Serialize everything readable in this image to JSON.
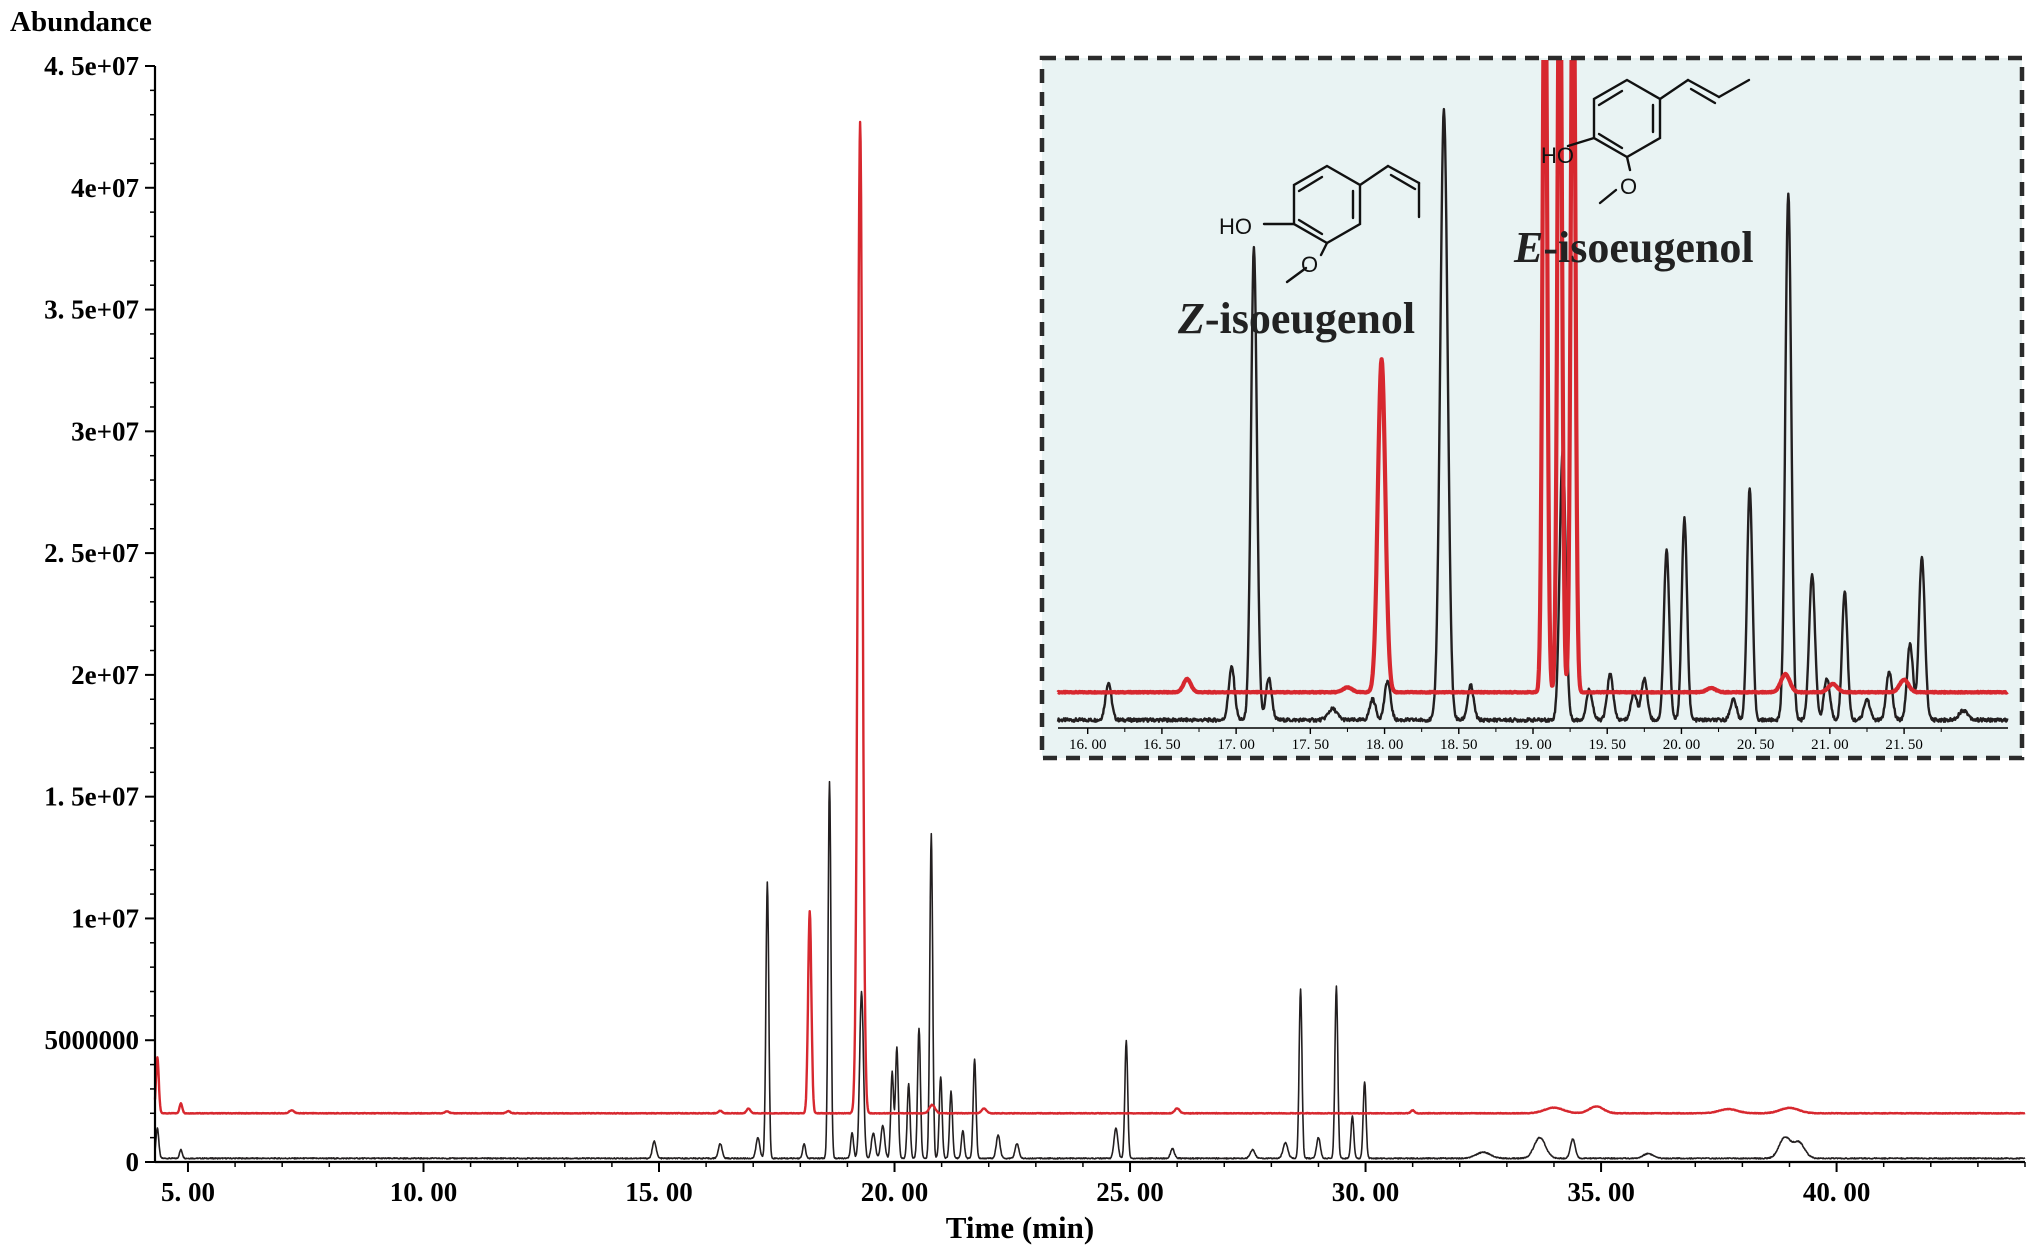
{
  "chart_data": [
    {
      "type": "line",
      "ylabel": "Abundance",
      "xlabel": "Time (min)",
      "xlim": [
        4.3,
        44.0
      ],
      "ylim": [
        0,
        45000000
      ],
      "y_ticks": [
        {
          "value": 0,
          "label": "0"
        },
        {
          "value": 5000000,
          "label": "5000000"
        },
        {
          "value": 10000000,
          "label": "1e+07"
        },
        {
          "value": 15000000,
          "label": "1. 5e+07"
        },
        {
          "value": 20000000,
          "label": "2e+07"
        },
        {
          "value": 25000000,
          "label": "2. 5e+07"
        },
        {
          "value": 30000000,
          "label": "3e+07"
        },
        {
          "value": 35000000,
          "label": "3. 5e+07"
        },
        {
          "value": 40000000,
          "label": "4e+07"
        },
        {
          "value": 45000000,
          "label": "4. 5e+07"
        }
      ],
      "x_ticks": [
        {
          "value": 5,
          "label": "5. 00"
        },
        {
          "value": 10,
          "label": "10. 00"
        },
        {
          "value": 15,
          "label": "15. 00"
        },
        {
          "value": 20,
          "label": "20. 00"
        },
        {
          "value": 25,
          "label": "25. 00"
        },
        {
          "value": 30,
          "label": "30. 00"
        },
        {
          "value": 35,
          "label": "35. 00"
        },
        {
          "value": 40,
          "label": "40. 00"
        }
      ],
      "series": [
        {
          "color": "#d7282f",
          "baseline": 2000000,
          "peaks": [
            {
              "x": 4.35,
              "y": 4300000,
              "w": 0.03
            },
            {
              "x": 4.85,
              "y": 2400000,
              "w": 0.03
            },
            {
              "x": 7.2,
              "y": 2120000,
              "w": 0.05
            },
            {
              "x": 10.5,
              "y": 2090000,
              "w": 0.04
            },
            {
              "x": 11.8,
              "y": 2090000,
              "w": 0.04
            },
            {
              "x": 16.3,
              "y": 2100000,
              "w": 0.04
            },
            {
              "x": 16.9,
              "y": 2200000,
              "w": 0.04
            },
            {
              "x": 18.2,
              "y": 10300000,
              "w": 0.035
            },
            {
              "x": 19.27,
              "y": 42700000,
              "w": 0.05
            },
            {
              "x": 20.8,
              "y": 2350000,
              "w": 0.06
            },
            {
              "x": 21.9,
              "y": 2200000,
              "w": 0.05
            },
            {
              "x": 26.0,
              "y": 2200000,
              "w": 0.05
            },
            {
              "x": 31.0,
              "y": 2120000,
              "w": 0.04
            },
            {
              "x": 34.0,
              "y": 2230000,
              "w": 0.2
            },
            {
              "x": 34.9,
              "y": 2280000,
              "w": 0.15
            },
            {
              "x": 37.7,
              "y": 2170000,
              "w": 0.2
            },
            {
              "x": 39.0,
              "y": 2220000,
              "w": 0.2
            }
          ]
        },
        {
          "color": "#231f20",
          "baseline": 150000,
          "peaks": [
            {
              "x": 4.35,
              "y": 1400000,
              "w": 0.03
            },
            {
              "x": 4.85,
              "y": 500000,
              "w": 0.03
            },
            {
              "x": 14.9,
              "y": 850000,
              "w": 0.04
            },
            {
              "x": 16.3,
              "y": 750000,
              "w": 0.04
            },
            {
              "x": 17.1,
              "y": 1000000,
              "w": 0.04
            },
            {
              "x": 17.3,
              "y": 11500000,
              "w": 0.03
            },
            {
              "x": 18.08,
              "y": 750000,
              "w": 0.03
            },
            {
              "x": 18.62,
              "y": 15600000,
              "w": 0.03
            },
            {
              "x": 19.1,
              "y": 1200000,
              "w": 0.03
            },
            {
              "x": 19.3,
              "y": 7000000,
              "w": 0.04
            },
            {
              "x": 19.55,
              "y": 1200000,
              "w": 0.04
            },
            {
              "x": 19.75,
              "y": 1500000,
              "w": 0.04
            },
            {
              "x": 19.95,
              "y": 3700000,
              "w": 0.03
            },
            {
              "x": 20.05,
              "y": 4700000,
              "w": 0.03
            },
            {
              "x": 20.3,
              "y": 3200000,
              "w": 0.03
            },
            {
              "x": 20.52,
              "y": 5500000,
              "w": 0.03
            },
            {
              "x": 20.78,
              "y": 13500000,
              "w": 0.03
            },
            {
              "x": 20.98,
              "y": 3500000,
              "w": 0.03
            },
            {
              "x": 21.2,
              "y": 2900000,
              "w": 0.03
            },
            {
              "x": 21.45,
              "y": 1300000,
              "w": 0.03
            },
            {
              "x": 21.7,
              "y": 4200000,
              "w": 0.03
            },
            {
              "x": 22.2,
              "y": 1100000,
              "w": 0.04
            },
            {
              "x": 22.6,
              "y": 750000,
              "w": 0.04
            },
            {
              "x": 24.7,
              "y": 1400000,
              "w": 0.04
            },
            {
              "x": 24.92,
              "y": 5000000,
              "w": 0.03
            },
            {
              "x": 25.9,
              "y": 550000,
              "w": 0.04
            },
            {
              "x": 27.6,
              "y": 500000,
              "w": 0.05
            },
            {
              "x": 28.3,
              "y": 800000,
              "w": 0.05
            },
            {
              "x": 28.62,
              "y": 7100000,
              "w": 0.03
            },
            {
              "x": 29.0,
              "y": 1000000,
              "w": 0.04
            },
            {
              "x": 29.38,
              "y": 7200000,
              "w": 0.03
            },
            {
              "x": 29.72,
              "y": 1900000,
              "w": 0.03
            },
            {
              "x": 29.98,
              "y": 3300000,
              "w": 0.03
            },
            {
              "x": 32.5,
              "y": 400000,
              "w": 0.15
            },
            {
              "x": 33.7,
              "y": 1000000,
              "w": 0.12
            },
            {
              "x": 34.4,
              "y": 950000,
              "w": 0.05
            },
            {
              "x": 36.0,
              "y": 350000,
              "w": 0.1
            },
            {
              "x": 38.9,
              "y": 1000000,
              "w": 0.12
            },
            {
              "x": 39.2,
              "y": 800000,
              "w": 0.12
            }
          ]
        }
      ]
    },
    {
      "type": "line",
      "xlim": [
        15.8,
        22.2
      ],
      "x_ticks": [
        {
          "value": 16.0,
          "label": "16. 00"
        },
        {
          "value": 16.5,
          "label": "16. 50"
        },
        {
          "value": 17.0,
          "label": "17. 00"
        },
        {
          "value": 17.5,
          "label": "17. 50"
        },
        {
          "value": 18.0,
          "label": "18. 00"
        },
        {
          "value": 18.5,
          "label": "18. 50"
        },
        {
          "value": 19.0,
          "label": "19. 00"
        },
        {
          "value": 19.5,
          "label": "19. 50"
        },
        {
          "value": 20.0,
          "label": "20. 00"
        },
        {
          "value": 20.5,
          "label": "20. 50"
        },
        {
          "value": 21.0,
          "label": "21. 00"
        },
        {
          "value": 21.5,
          "label": "21. 50"
        }
      ],
      "annotations": {
        "z_letter": "Z",
        "z_suffix": "-isoeugenol",
        "e_letter": "E",
        "e_suffix": "-isoeugenol",
        "ho_label": "HO",
        "o_label": "O"
      },
      "series": [
        {
          "color": "#d7282f",
          "baseline": 2.0,
          "peaks": [
            {
              "x": 16.67,
              "y": 2.95,
              "w": 0.025
            },
            {
              "x": 17.75,
              "y": 2.35,
              "w": 0.03
            },
            {
              "x": 17.98,
              "y": 26.0,
              "w": 0.025
            },
            {
              "x": 19.08,
              "y": 60.0,
              "w": 0.015
            },
            {
              "x": 19.18,
              "y": 60.0,
              "w": 0.015
            },
            {
              "x": 19.27,
              "y": 60.0,
              "w": 0.015
            },
            {
              "x": 20.2,
              "y": 2.3,
              "w": 0.03
            },
            {
              "x": 20.7,
              "y": 3.3,
              "w": 0.03
            },
            {
              "x": 21.02,
              "y": 2.6,
              "w": 0.03
            },
            {
              "x": 21.5,
              "y": 2.9,
              "w": 0.03
            }
          ]
        },
        {
          "color": "#231f20",
          "baseline": 0.0,
          "peaks": [
            {
              "x": 16.14,
              "y": 2.7,
              "w": 0.02
            },
            {
              "x": 16.97,
              "y": 3.8,
              "w": 0.02
            },
            {
              "x": 17.12,
              "y": 34.0,
              "w": 0.02
            },
            {
              "x": 17.22,
              "y": 3.0,
              "w": 0.02
            },
            {
              "x": 17.65,
              "y": 0.8,
              "w": 0.03
            },
            {
              "x": 17.92,
              "y": 1.5,
              "w": 0.02
            },
            {
              "x": 18.02,
              "y": 2.8,
              "w": 0.02
            },
            {
              "x": 18.4,
              "y": 44.0,
              "w": 0.025
            },
            {
              "x": 18.58,
              "y": 2.5,
              "w": 0.02
            },
            {
              "x": 19.2,
              "y": 19.5,
              "w": 0.02
            },
            {
              "x": 19.38,
              "y": 2.2,
              "w": 0.02
            },
            {
              "x": 19.52,
              "y": 3.3,
              "w": 0.02
            },
            {
              "x": 19.68,
              "y": 2.0,
              "w": 0.02
            },
            {
              "x": 19.75,
              "y": 3.0,
              "w": 0.02
            },
            {
              "x": 19.9,
              "y": 12.3,
              "w": 0.018
            },
            {
              "x": 20.02,
              "y": 14.5,
              "w": 0.018
            },
            {
              "x": 20.35,
              "y": 1.5,
              "w": 0.02
            },
            {
              "x": 20.46,
              "y": 16.7,
              "w": 0.018
            },
            {
              "x": 20.72,
              "y": 38.0,
              "w": 0.02
            },
            {
              "x": 20.88,
              "y": 10.5,
              "w": 0.02
            },
            {
              "x": 20.98,
              "y": 3.0,
              "w": 0.02
            },
            {
              "x": 21.1,
              "y": 9.3,
              "w": 0.018
            },
            {
              "x": 21.25,
              "y": 1.5,
              "w": 0.02
            },
            {
              "x": 21.4,
              "y": 3.5,
              "w": 0.02
            },
            {
              "x": 21.54,
              "y": 5.5,
              "w": 0.02
            },
            {
              "x": 21.62,
              "y": 11.7,
              "w": 0.02
            },
            {
              "x": 21.9,
              "y": 0.7,
              "w": 0.03
            }
          ]
        }
      ]
    }
  ]
}
